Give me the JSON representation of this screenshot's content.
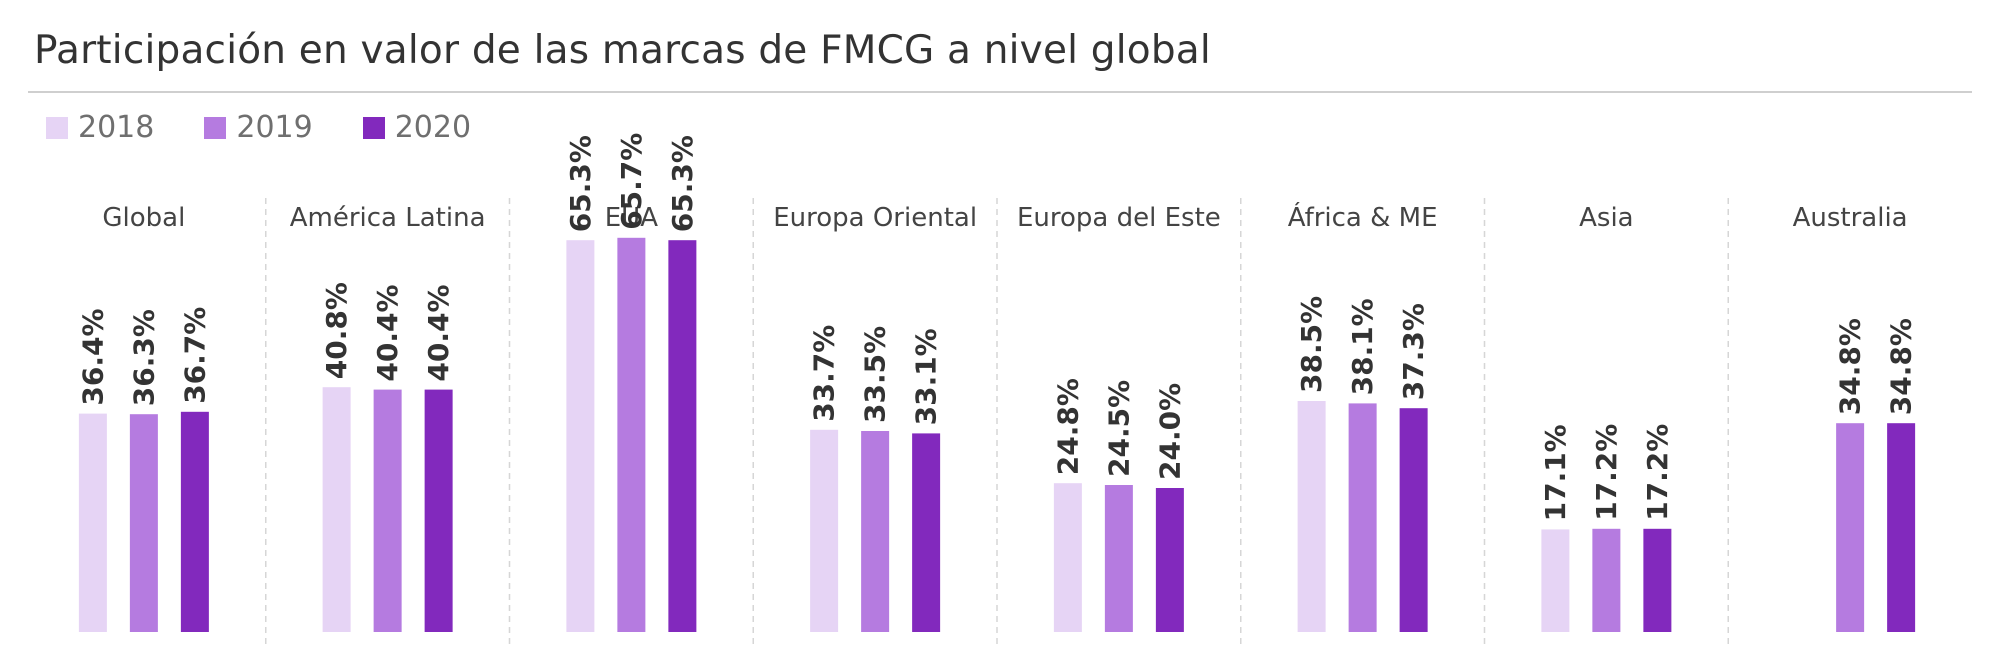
{
  "chart_data": {
    "type": "bar",
    "title": "Participación en valor de las marcas de FMCG a nivel global",
    "categories": [
      "Global",
      "América Latina",
      "EUA",
      "Europa Oriental",
      "Europa del Este",
      "África & ME",
      "Asia",
      "Australia"
    ],
    "series": [
      {
        "name": "2018",
        "color": "#e6d4f5",
        "values": [
          36.4,
          40.8,
          65.3,
          33.7,
          24.8,
          38.5,
          17.1,
          null
        ]
      },
      {
        "name": "2019",
        "color": "#b57be0",
        "values": [
          36.3,
          40.4,
          65.7,
          33.5,
          24.5,
          38.1,
          17.2,
          34.8
        ]
      },
      {
        "name": "2020",
        "color": "#8229bd",
        "values": [
          36.7,
          40.4,
          65.3,
          33.1,
          24.0,
          37.3,
          17.2,
          34.8
        ]
      }
    ],
    "value_labels": [
      [
        "36.4%",
        "36.3%",
        "36.7%"
      ],
      [
        "40.8%",
        "40.4%",
        "40.4%"
      ],
      [
        "65.3%",
        "65.7%",
        "65.3%"
      ],
      [
        "33.7%",
        "33.5%",
        "33.1%"
      ],
      [
        "24.8%",
        "24.5%",
        "24.0%"
      ],
      [
        "38.5%",
        "38.1%",
        "37.3%"
      ],
      [
        "17.1%",
        "17.2%",
        "17.2%"
      ],
      [
        null,
        "34.8%",
        "34.8%"
      ]
    ],
    "ylim": [
      0,
      70
    ],
    "legend_position": "top-left",
    "grid": false,
    "panel_dividers": "dashed-vertical"
  }
}
